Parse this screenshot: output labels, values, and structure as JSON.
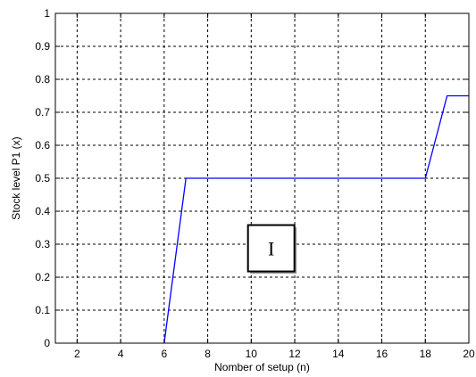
{
  "chart_data": {
    "type": "line",
    "title": "",
    "xlabel": "Nomber of setup (n)",
    "ylabel": "Stock level P1 (x)",
    "xlim": [
      1,
      20
    ],
    "ylim": [
      0,
      1
    ],
    "x_ticks": [
      "2",
      "4",
      "6",
      "8",
      "10",
      "12",
      "14",
      "16",
      "18",
      "20"
    ],
    "y_ticks": [
      "0",
      "0.1",
      "0.2",
      "0.3",
      "0.4",
      "0.5",
      "0.6",
      "0.7",
      "0.8",
      "0.9",
      "1"
    ],
    "grid": true,
    "series": [
      {
        "x": [
          6,
          7,
          18,
          19,
          20
        ],
        "y": [
          0,
          0.5,
          0.5,
          0.75,
          0.75
        ],
        "color": "#0000ff"
      }
    ],
    "annotations": [
      {
        "text": "I",
        "x": 11,
        "y": 0.285
      }
    ]
  }
}
